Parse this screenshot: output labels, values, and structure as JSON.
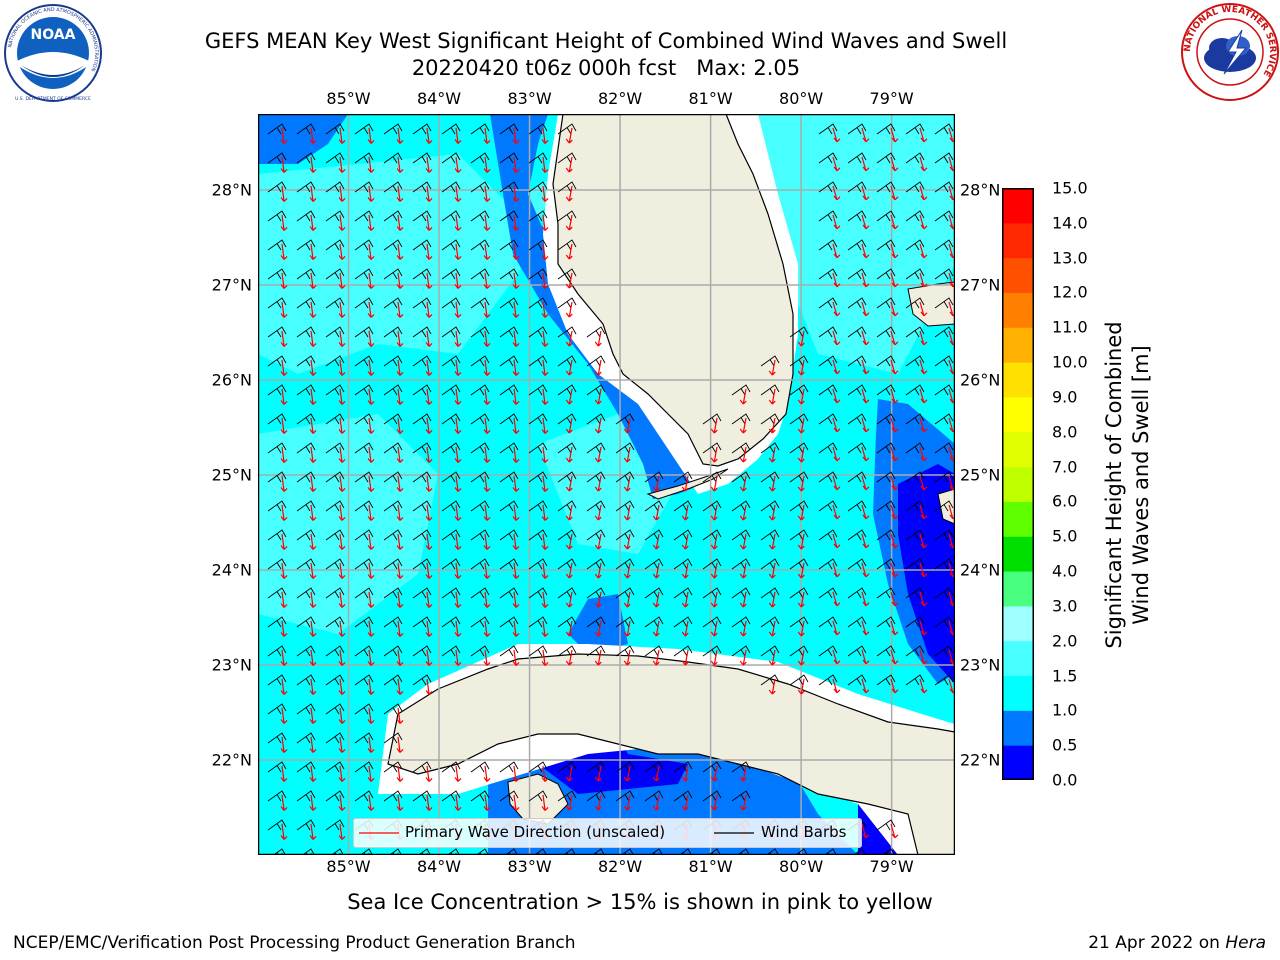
{
  "header": {
    "title_line1": "GEFS MEAN Key West Significant Height of Combined Wind Waves and Swell",
    "title_line2": "20220420 t06z 000h fcst   Max: 2.05"
  },
  "logos": {
    "noaa_text": "NOAA",
    "noaa_ring_text": "NATIONAL OCEANIC AND ATMOSPHERIC ADMINISTRATION",
    "noaa_bottom_text": "U.S. DEPARTMENT OF COMMERCE",
    "nws_ring_text": "NATIONAL WEATHER SERVICE"
  },
  "map": {
    "lon_ticks": [
      "85°W",
      "84°W",
      "83°W",
      "82°W",
      "81°W",
      "80°W",
      "79°W"
    ],
    "lat_ticks": [
      "28°N",
      "27°N",
      "26°N",
      "25°N",
      "24°N",
      "23°N",
      "22°N"
    ],
    "lon_values": [
      -85,
      -84,
      -83,
      -82,
      -81,
      -80,
      -79
    ],
    "lat_values": [
      28,
      27,
      26,
      25,
      24,
      23,
      22
    ],
    "lon_range": [
      -86.0,
      -78.3
    ],
    "lat_range": [
      21.0,
      28.8
    ],
    "land_color": "#efeedf",
    "wave_arrow_color": "#ff0000",
    "barb_color": "#000000"
  },
  "legend": {
    "wave_label": "Primary Wave Direction (unscaled)",
    "barb_label": "Wind Barbs"
  },
  "colorbar": {
    "label_line1": "Significant Height of Combined",
    "label_line2": "Wind Waves and Swell [m]",
    "ticks": [
      "0.0",
      "0.5",
      "1.0",
      "1.5",
      "2.0",
      "3.0",
      "4.0",
      "5.0",
      "6.0",
      "7.0",
      "8.0",
      "9.0",
      "10.0",
      "11.0",
      "12.0",
      "13.0",
      "14.0",
      "15.0"
    ],
    "colors": [
      "#0000ff",
      "#0078ff",
      "#00ffff",
      "#48ffff",
      "#a0ffff",
      "#48ff80",
      "#00e000",
      "#60ff00",
      "#c0ff00",
      "#e0ff00",
      "#ffff00",
      "#ffe000",
      "#ffb000",
      "#ff8000",
      "#ff5000",
      "#ff2800",
      "#ff0000"
    ]
  },
  "footer": {
    "note": "Sea Ice Concentration > 15% is shown in pink to yellow",
    "left": "NCEP/EMC/Verification Post Processing Product Generation Branch",
    "right_prefix": "21 Apr 2022 on ",
    "right_host": "Hera"
  }
}
